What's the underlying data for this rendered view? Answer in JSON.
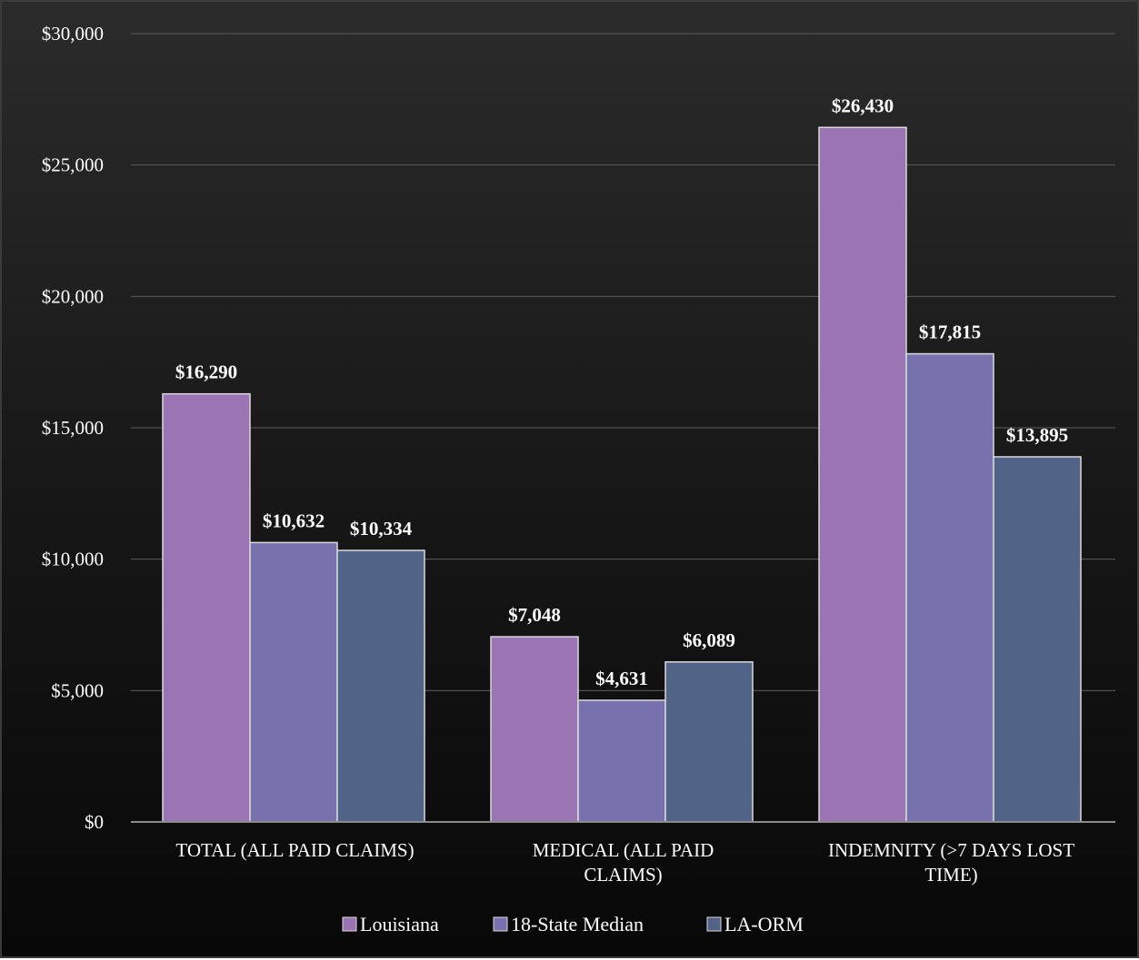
{
  "chart_data": {
    "type": "bar",
    "title": "",
    "xlabel": "",
    "ylabel": "",
    "categories": [
      [
        "TOTAL (ALL PAID CLAIMS)"
      ],
      [
        "MEDICAL (ALL PAID",
        "CLAIMS)"
      ],
      [
        "INDEMNITY (>7 DAYS LOST",
        "TIME)"
      ]
    ],
    "series": [
      {
        "name": "Louisiana",
        "color": "#9b74b3",
        "values": [
          16290,
          7048,
          26430
        ],
        "labels": [
          "$16,290",
          "$7,048",
          "$26,430"
        ]
      },
      {
        "name": "18-State Median",
        "color": "#7772ae",
        "values": [
          10632,
          4631,
          17815
        ],
        "labels": [
          "$10,632",
          "$4,631",
          "$17,815"
        ]
      },
      {
        "name": "LA-ORM",
        "color": "#516386",
        "values": [
          10334,
          6089,
          13895
        ],
        "labels": [
          "$10,334",
          "$6,089",
          "$13,895"
        ]
      }
    ],
    "ylim": [
      0,
      30000
    ],
    "yticks": [
      0,
      5000,
      10000,
      15000,
      20000,
      25000,
      30000
    ],
    "ytick_labels": [
      "$0",
      "$5,000",
      "$10,000",
      "$15,000",
      "$20,000",
      "$25,000",
      "$30,000"
    ],
    "grid": true,
    "legend_position": "bottom",
    "colors": {
      "bar_outline": "#d9d9d9",
      "gridline": "#5a5a5a",
      "axis_line": "#8c8c8c",
      "text": "#ffffff"
    }
  }
}
